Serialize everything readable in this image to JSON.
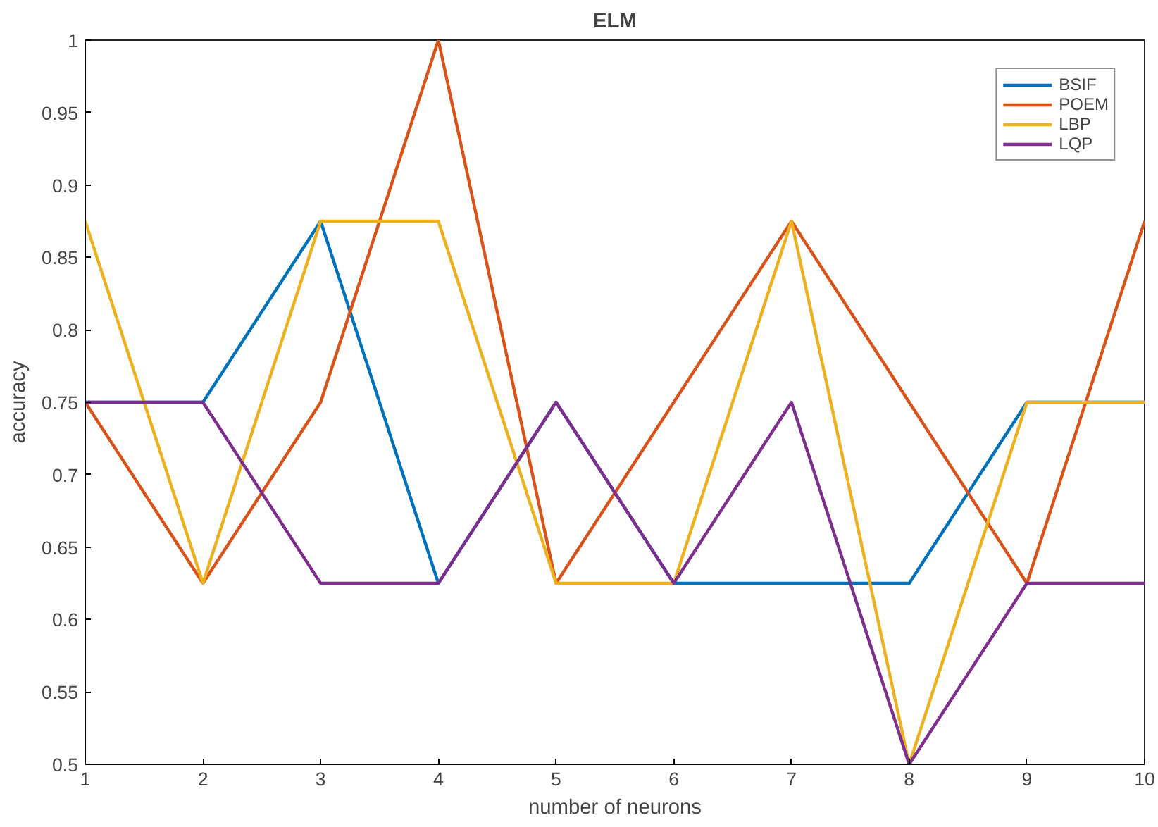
{
  "chart_data": {
    "type": "line",
    "title": "ELM",
    "xlabel": "number of neurons",
    "ylabel": "accuracy",
    "x": [
      1,
      2,
      3,
      4,
      5,
      6,
      7,
      8,
      9,
      10
    ],
    "series": [
      {
        "name": "BSIF",
        "color": "#0072bd",
        "values": [
          0.75,
          0.75,
          0.875,
          0.625,
          0.75,
          0.625,
          0.625,
          0.625,
          0.75,
          0.75
        ]
      },
      {
        "name": "POEM",
        "color": "#d95319",
        "values": [
          0.75,
          0.625,
          0.75,
          1.0,
          0.625,
          0.75,
          0.875,
          0.75,
          0.625,
          0.875
        ]
      },
      {
        "name": "LBP",
        "color": "#edb120",
        "values": [
          0.875,
          0.625,
          0.875,
          0.875,
          0.625,
          0.625,
          0.875,
          0.5,
          0.75,
          0.75
        ]
      },
      {
        "name": "LQP",
        "color": "#7e2f8e",
        "values": [
          0.75,
          0.75,
          0.625,
          0.625,
          0.75,
          0.625,
          0.75,
          0.5,
          0.625,
          0.625
        ]
      }
    ],
    "xlim": [
      1,
      10
    ],
    "ylim": [
      0.5,
      1
    ],
    "xticks": [
      1,
      2,
      3,
      4,
      5,
      6,
      7,
      8,
      9,
      10
    ],
    "yticks": [
      {
        "value": 0.5,
        "label": "0.5"
      },
      {
        "value": 0.55,
        "label": "0.55"
      },
      {
        "value": 0.6,
        "label": "0.6"
      },
      {
        "value": 0.65,
        "label": "0.65"
      },
      {
        "value": 0.7,
        "label": "0.7"
      },
      {
        "value": 0.75,
        "label": "0.75"
      },
      {
        "value": 0.8,
        "label": "0.8"
      },
      {
        "value": 0.85,
        "label": "0.85"
      },
      {
        "value": 0.9,
        "label": "0.9"
      },
      {
        "value": 0.95,
        "label": "0.95"
      },
      {
        "value": 1,
        "label": "1"
      }
    ],
    "legend": "top right",
    "grid": false,
    "marker": "none",
    "line_style": "solid"
  }
}
